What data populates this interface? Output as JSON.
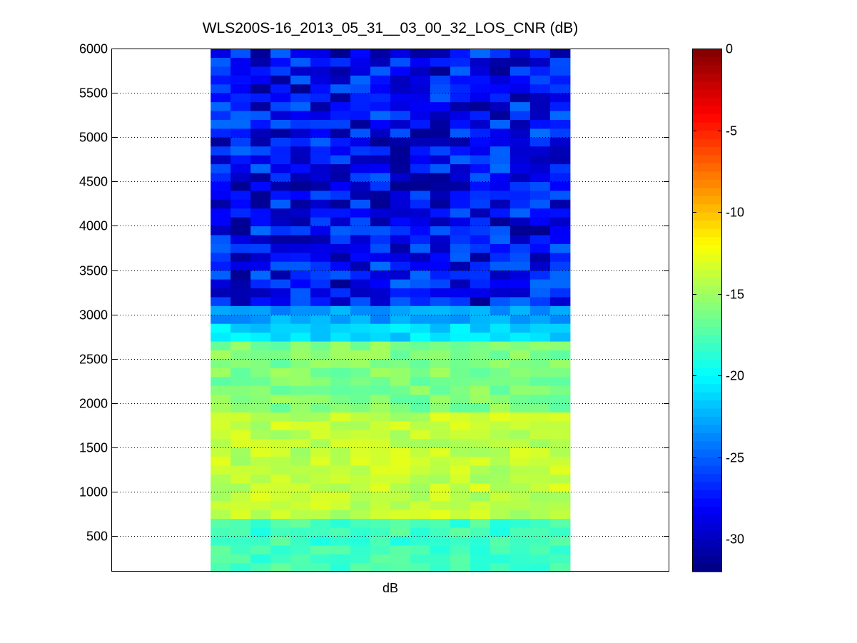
{
  "chart_data": {
    "type": "heatmap",
    "title": "WLS200S-16_2013_05_31__03_00_32_LOS_CNR (dB)",
    "xlabel": "dB",
    "ylabel": "",
    "ylim": [
      100,
      6000
    ],
    "yticks": [
      500,
      1000,
      1500,
      2000,
      2500,
      3000,
      3500,
      4000,
      4500,
      5000,
      5500,
      6000
    ],
    "grid": "horizontal-dotted",
    "colormap": "jet",
    "colorbar": {
      "label": "",
      "range": [
        -32,
        0
      ],
      "ticks": [
        0,
        -5,
        -10,
        -15,
        -20,
        -25,
        -30
      ]
    },
    "columns": 18,
    "data_x_fraction": [
      0.178,
      0.822
    ],
    "bands": [
      {
        "range_m": [
          100,
          700
        ],
        "mean_db": -18
      },
      {
        "range_m": [
          700,
          1900
        ],
        "mean_db": -14
      },
      {
        "range_m": [
          1900,
          2700
        ],
        "mean_db": -16
      },
      {
        "range_m": [
          2700,
          2950
        ],
        "mean_db": -21
      },
      {
        "range_m": [
          2950,
          3100
        ],
        "mean_db": -23
      },
      {
        "range_m": [
          3100,
          6000
        ],
        "mean_db": -28
      }
    ]
  }
}
